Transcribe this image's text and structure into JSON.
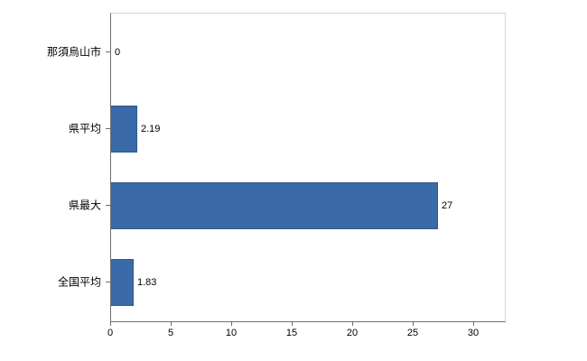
{
  "chart_data": {
    "type": "bar",
    "orientation": "horizontal",
    "title": "",
    "xlabel": "",
    "ylabel": "",
    "categories": [
      "那須烏山市",
      "県平均",
      "県最大",
      "全国平均"
    ],
    "values": [
      0,
      2.19,
      27,
      1.83
    ],
    "value_labels": [
      "0",
      "2.19",
      "27",
      "1.83"
    ],
    "x_ticks": [
      0,
      5,
      10,
      15,
      20,
      25,
      30
    ],
    "xlim": [
      0,
      32.5
    ],
    "grid": "off",
    "legend": "none",
    "bar_color": "#3a6ba8",
    "bar_border_color": "#2e5984",
    "axis_color": "#6e6e6e",
    "plot_border_color": "#d3d3d3",
    "background_color": "#ffffff"
  }
}
